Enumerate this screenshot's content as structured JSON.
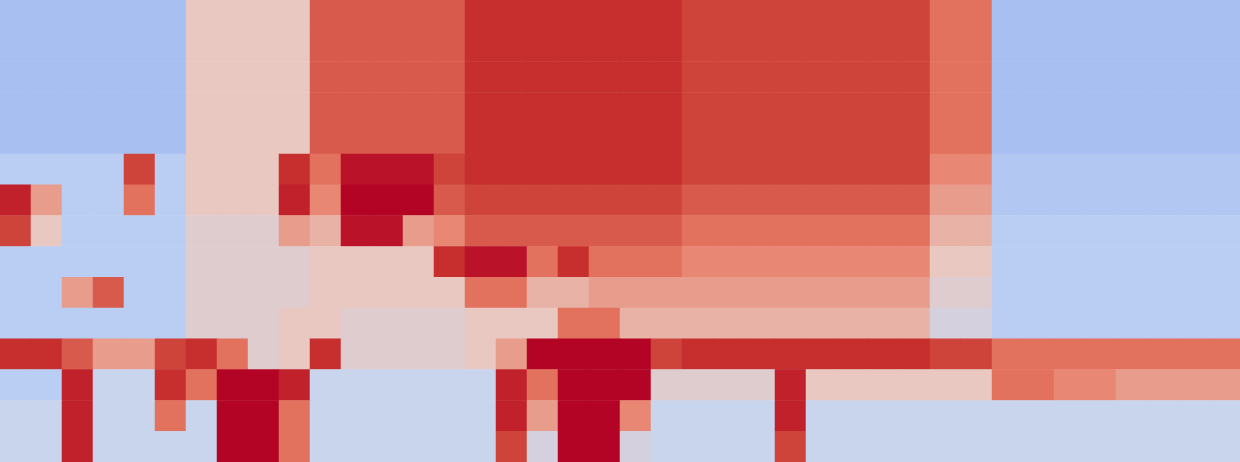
{
  "chart_data": {
    "type": "heatmap",
    "tick_labels": false,
    "zlim": [
      0,
      10
    ],
    "cells": [
      [
        2.5,
        2.5,
        2.5,
        2.5,
        2.5,
        2.5,
        5,
        5,
        5,
        5,
        7.5,
        7.5,
        7.5,
        7.5,
        7.5,
        8.5,
        8.5,
        8.5,
        8.5,
        8.5,
        8.5,
        8.5,
        8,
        8,
        8,
        8,
        8,
        8,
        8,
        8,
        7,
        7,
        2.5,
        2.5,
        2.5,
        2.5,
        2.5,
        2.5,
        2.5,
        2.5
      ],
      [
        2.5,
        2.5,
        2.5,
        2.5,
        2.5,
        2.5,
        5,
        5,
        5,
        5,
        7.5,
        7.5,
        7.5,
        7.5,
        7.5,
        8.5,
        8.5,
        8.5,
        8.5,
        8.5,
        8.5,
        8.5,
        8,
        8,
        8,
        8,
        8,
        8,
        8,
        8,
        7,
        7,
        2.5,
        2.5,
        2.5,
        2.5,
        2.5,
        2.5,
        2.5,
        2.5
      ],
      [
        2.5,
        2.5,
        2.5,
        2.5,
        2.5,
        2.5,
        5,
        5,
        5,
        5,
        7.5,
        7.5,
        7.5,
        7.5,
        7.5,
        8.5,
        8.5,
        8.5,
        8.5,
        8.5,
        8.5,
        8.5,
        8,
        8,
        8,
        8,
        8,
        8,
        8,
        8,
        7,
        7,
        2.5,
        2.5,
        2.5,
        2.5,
        2.5,
        2.5,
        2.5,
        2.5
      ],
      [
        2.5,
        2.5,
        2.5,
        2.5,
        2.5,
        2.5,
        5,
        5,
        5,
        5,
        7.5,
        7.5,
        7.5,
        7.5,
        7.5,
        8.5,
        8.5,
        8.5,
        8.5,
        8.5,
        8.5,
        8.5,
        8,
        8,
        8,
        8,
        8,
        8,
        8,
        8,
        7,
        7,
        2.5,
        2.5,
        2.5,
        2.5,
        2.5,
        2.5,
        2.5,
        2.5
      ],
      [
        2.5,
        2.5,
        2.5,
        2.5,
        2.5,
        2.5,
        5,
        5,
        5,
        5,
        7.5,
        7.5,
        7.5,
        7.5,
        7.5,
        8.5,
        8.5,
        8.5,
        8.5,
        8.5,
        8.5,
        8.5,
        8,
        8,
        8,
        8,
        8,
        8,
        8,
        8,
        7,
        7,
        2.5,
        2.5,
        2.5,
        2.5,
        2.5,
        2.5,
        2.5,
        2.5
      ],
      [
        3,
        3,
        3,
        3,
        8,
        3,
        5,
        5,
        5,
        8.5,
        7,
        9.5,
        9.5,
        9.5,
        8,
        8.5,
        8.5,
        8.5,
        8.5,
        8.5,
        8.5,
        8.5,
        8,
        8,
        8,
        8,
        8,
        8,
        8,
        8,
        6.5,
        6.5,
        2.8,
        2.8,
        2.8,
        2.8,
        2.8,
        2.8,
        2.8,
        2.8
      ],
      [
        9,
        6,
        3,
        3,
        7,
        3,
        5,
        5,
        5,
        9,
        6.5,
        10,
        10,
        10,
        7.5,
        8,
        8,
        8,
        8,
        8,
        8,
        8,
        7.5,
        7.5,
        7.5,
        7.5,
        7.5,
        7.5,
        7.5,
        7.5,
        6,
        6,
        2.8,
        2.8,
        2.8,
        2.8,
        2.8,
        2.8,
        2.8,
        2.8
      ],
      [
        8,
        5,
        3,
        3,
        3,
        3,
        4.5,
        4.5,
        4.5,
        6,
        5.5,
        9.5,
        9.5,
        6,
        6.5,
        7.5,
        7.5,
        7.5,
        7.5,
        7.5,
        7.5,
        7.5,
        7,
        7,
        7,
        7,
        7,
        7,
        7,
        7,
        5.5,
        5.5,
        3,
        3,
        3,
        3,
        3,
        3,
        3,
        3
      ],
      [
        3,
        3,
        3,
        3,
        3,
        3,
        4.5,
        4.5,
        4.5,
        4.5,
        5,
        5,
        5,
        5,
        8.5,
        9.5,
        9.5,
        7,
        8.5,
        7,
        7,
        7,
        6.5,
        6.5,
        6.5,
        6.5,
        6.5,
        6.5,
        6.5,
        6.5,
        5,
        5,
        3,
        3,
        3,
        3,
        3,
        3,
        3,
        3
      ],
      [
        3,
        3,
        6,
        7.5,
        3,
        3,
        4.5,
        4.5,
        4.5,
        4.5,
        5,
        5,
        5,
        5,
        5,
        7,
        7,
        5.5,
        5.5,
        6,
        6,
        6,
        6,
        6,
        6,
        6,
        6,
        6,
        6,
        6,
        4.5,
        4.5,
        3,
        3,
        3,
        3,
        3,
        3,
        3,
        3
      ],
      [
        3,
        3,
        3,
        3,
        3,
        3,
        4.5,
        4.5,
        4.5,
        5,
        5,
        4.5,
        4.5,
        4.5,
        4.5,
        5,
        5,
        5,
        7,
        7,
        5.5,
        5.5,
        5.5,
        5.5,
        5.5,
        5.5,
        5.5,
        5.5,
        5.5,
        5.5,
        4,
        4,
        3,
        3,
        3,
        3,
        3,
        3,
        3,
        3
      ],
      [
        8.5,
        8.5,
        7.5,
        6,
        6,
        8,
        8.5,
        7,
        4.5,
        5,
        8.5,
        4.5,
        4.5,
        4.5,
        4.5,
        5,
        6,
        10,
        10,
        10,
        10,
        8,
        8.5,
        8.5,
        8.5,
        8.5,
        8.5,
        8.5,
        8.5,
        8.5,
        8,
        8,
        7,
        7,
        7,
        7,
        7,
        7,
        7,
        7
      ],
      [
        3,
        3,
        9,
        3.5,
        3.5,
        8.5,
        7,
        10,
        10,
        9,
        3.5,
        3.5,
        3.5,
        3.5,
        3.5,
        3.5,
        9,
        7,
        10,
        10,
        10,
        4.5,
        4.5,
        4.5,
        4.5,
        9,
        5,
        5,
        5,
        5,
        5,
        5,
        7,
        7,
        6.5,
        6.5,
        6,
        6,
        6,
        6
      ],
      [
        3.5,
        3.5,
        9,
        3.5,
        3.5,
        7,
        3.5,
        10,
        10,
        7,
        3.5,
        3.5,
        3.5,
        3.5,
        3.5,
        3.5,
        9,
        6,
        10,
        10,
        6.5,
        3.5,
        3.5,
        3.5,
        3.5,
        9,
        3.5,
        3.5,
        3.5,
        3.5,
        3.5,
        3.5,
        3.5,
        3.5,
        3.5,
        3.5,
        3.5,
        3.5,
        3.5,
        3.5
      ],
      [
        3.5,
        3.5,
        9,
        3.5,
        3.5,
        3.5,
        3.5,
        10,
        10,
        7,
        3.5,
        3.5,
        3.5,
        3.5,
        3.5,
        3.5,
        8,
        4,
        10,
        10,
        4,
        3.5,
        3.5,
        3.5,
        3.5,
        8,
        3.5,
        3.5,
        3.5,
        3.5,
        3.5,
        3.5,
        3.5,
        3.5,
        3.5,
        3.5,
        3.5,
        3.5,
        3.5,
        3.5
      ]
    ]
  }
}
